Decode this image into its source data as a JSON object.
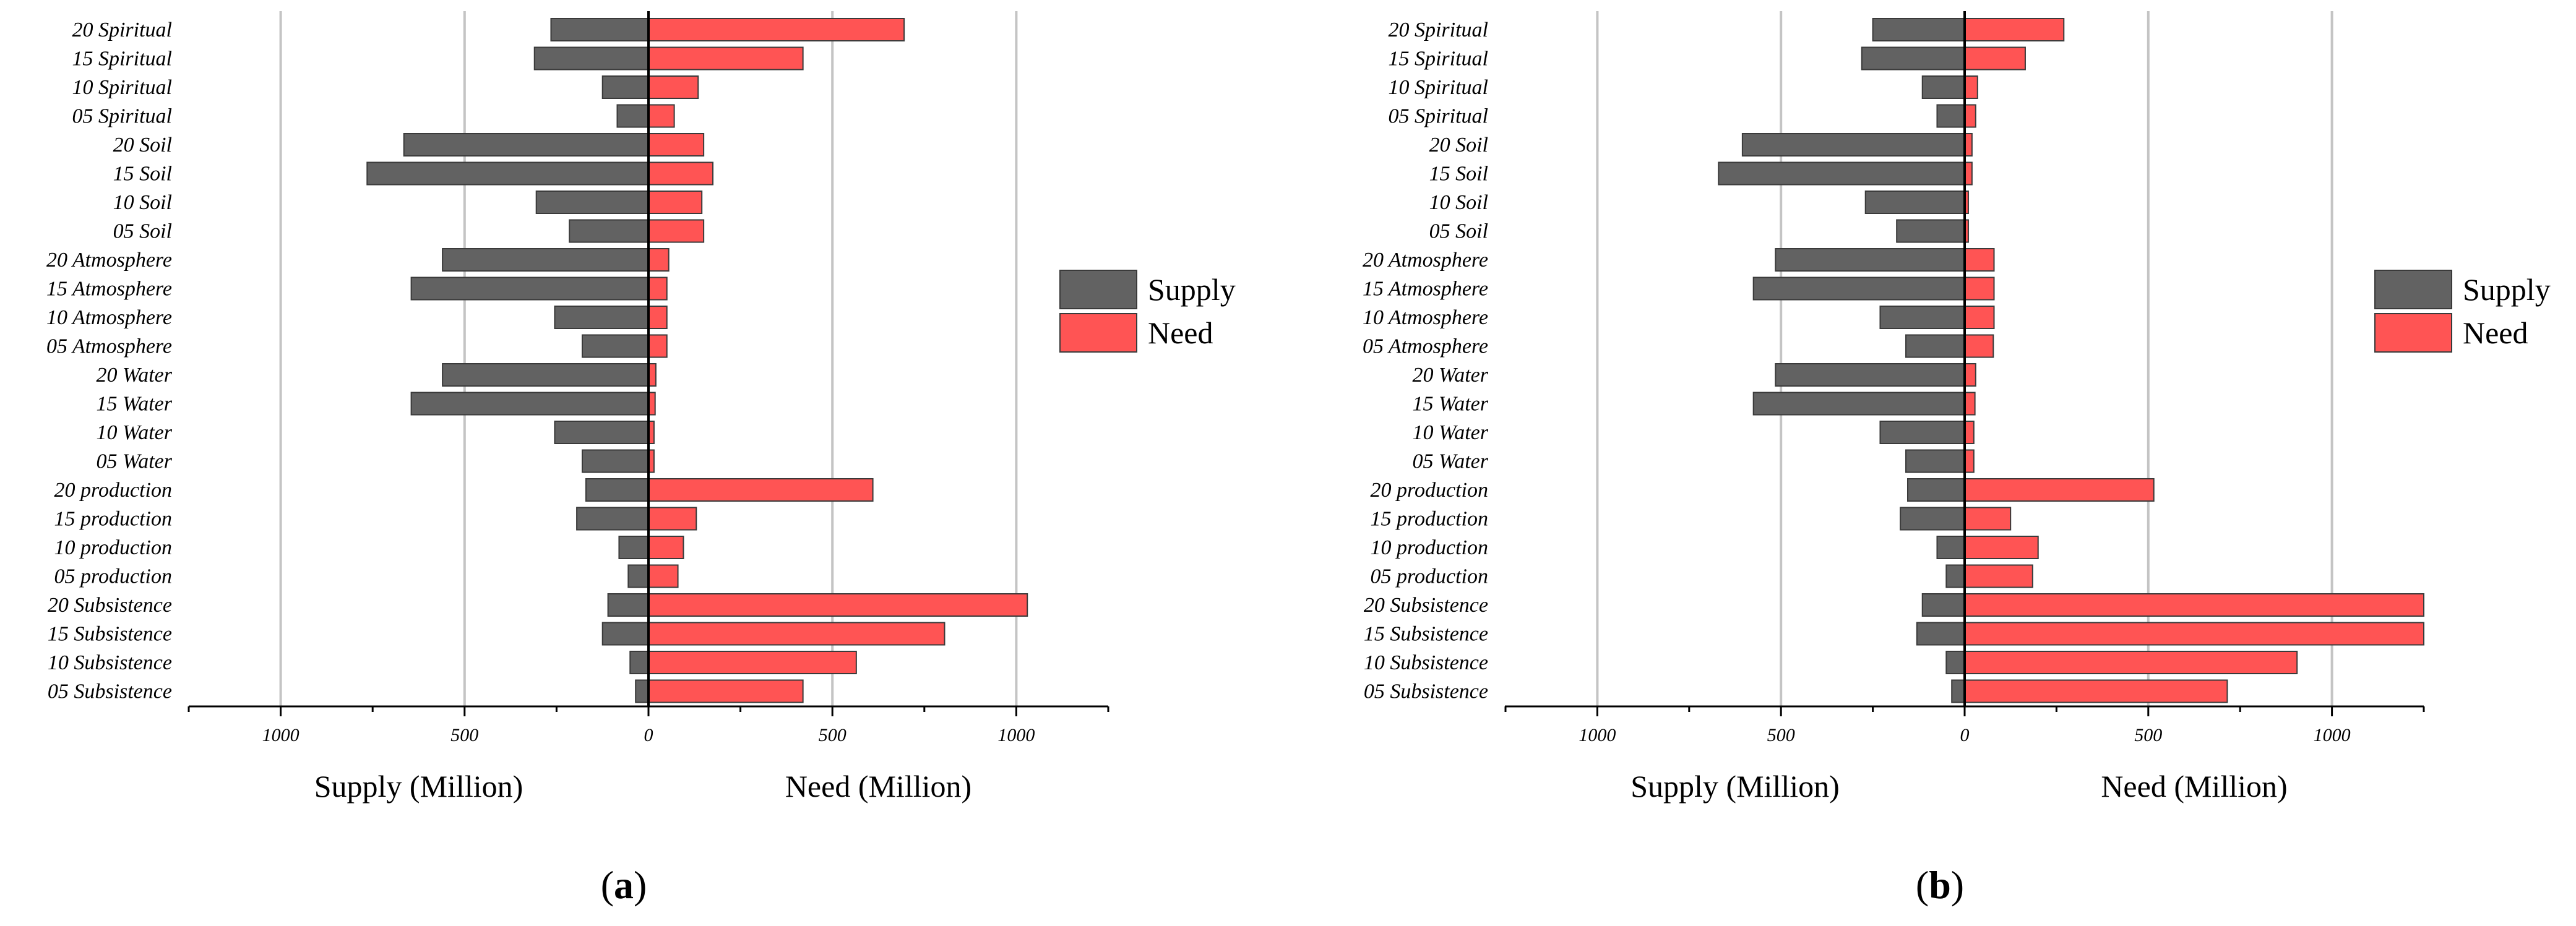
{
  "colors": {
    "supply": "#626262",
    "need": "#ff5454",
    "grid": "#c4c4c4"
  },
  "legend": {
    "supply": "Supply",
    "need": "Need"
  },
  "chart_data": [
    {
      "type": "bar",
      "orientation": "horizontal-diverging",
      "panel_label": "a",
      "xlabel_left": "Supply (Million)",
      "xlabel_right": "Need (Million)",
      "xlim": [
        -1250,
        1250
      ],
      "ticks": [
        {
          "value": -1000,
          "label": "1000"
        },
        {
          "value": -500,
          "label": "500"
        },
        {
          "value": 0,
          "label": "0"
        },
        {
          "value": 500,
          "label": "500"
        },
        {
          "value": 1000,
          "label": "1000"
        }
      ],
      "categories": [
        "20 Spiritual",
        "15 Spiritual",
        "10 Spiritual",
        "05 Spiritual",
        "20 Soil",
        "15 Soil",
        "10 Soil",
        "05 Soil",
        "20 Atmosphere",
        "15 Atmosphere",
        "10 Atmosphere",
        "05 Atmosphere",
        "20 Water",
        "15 Water",
        "10 Water",
        "05 Water",
        "20 production",
        "15 production",
        "10 production",
        "05 production",
        "20 Subsistence",
        "15 Subsistence",
        "10 Subsistence",
        "05 Subsistence"
      ],
      "series": [
        {
          "name": "Supply",
          "values": [
            265,
            310,
            125,
            85,
            665,
            765,
            305,
            215,
            560,
            645,
            255,
            180,
            560,
            645,
            255,
            180,
            170,
            195,
            80,
            55,
            110,
            125,
            50,
            35
          ]
        },
        {
          "name": "Need",
          "values": [
            695,
            420,
            135,
            70,
            150,
            175,
            145,
            150,
            55,
            50,
            50,
            50,
            20,
            18,
            15,
            15,
            610,
            130,
            95,
            80,
            1030,
            805,
            565,
            420
          ]
        }
      ]
    },
    {
      "type": "bar",
      "orientation": "horizontal-diverging",
      "panel_label": "b",
      "xlabel_left": "Supply (Million)",
      "xlabel_right": "Need (Million)",
      "xlim": [
        -1250,
        1250
      ],
      "ticks": [
        {
          "value": -1000,
          "label": "1000"
        },
        {
          "value": -500,
          "label": "500"
        },
        {
          "value": 0,
          "label": "0"
        },
        {
          "value": 500,
          "label": "500"
        },
        {
          "value": 1000,
          "label": "1000"
        }
      ],
      "categories": [
        "20 Spiritual",
        "15 Spiritual",
        "10 Spiritual",
        "05 Spiritual",
        "20 Soil",
        "15 Soil",
        "10 Soil",
        "05 Soil",
        "20 Atmosphere",
        "15 Atmosphere",
        "10 Atmosphere",
        "05 Atmosphere",
        "20 Water",
        "15 Water",
        "10 Water",
        "05 Water",
        "20 production",
        "15 production",
        "10 production",
        "05 production",
        "20 Subsistence",
        "15 Subsistence",
        "10 Subsistence",
        "05 Subsistence"
      ],
      "series": [
        {
          "name": "Supply",
          "values": [
            250,
            280,
            115,
            75,
            605,
            670,
            270,
            185,
            515,
            575,
            230,
            160,
            515,
            575,
            230,
            160,
            155,
            175,
            75,
            50,
            115,
            130,
            50,
            35
          ]
        },
        {
          "name": "Need",
          "values": [
            270,
            165,
            35,
            30,
            20,
            20,
            10,
            10,
            80,
            80,
            80,
            78,
            30,
            28,
            25,
            25,
            515,
            125,
            200,
            185,
            1250,
            1250,
            905,
            715
          ]
        }
      ]
    }
  ]
}
